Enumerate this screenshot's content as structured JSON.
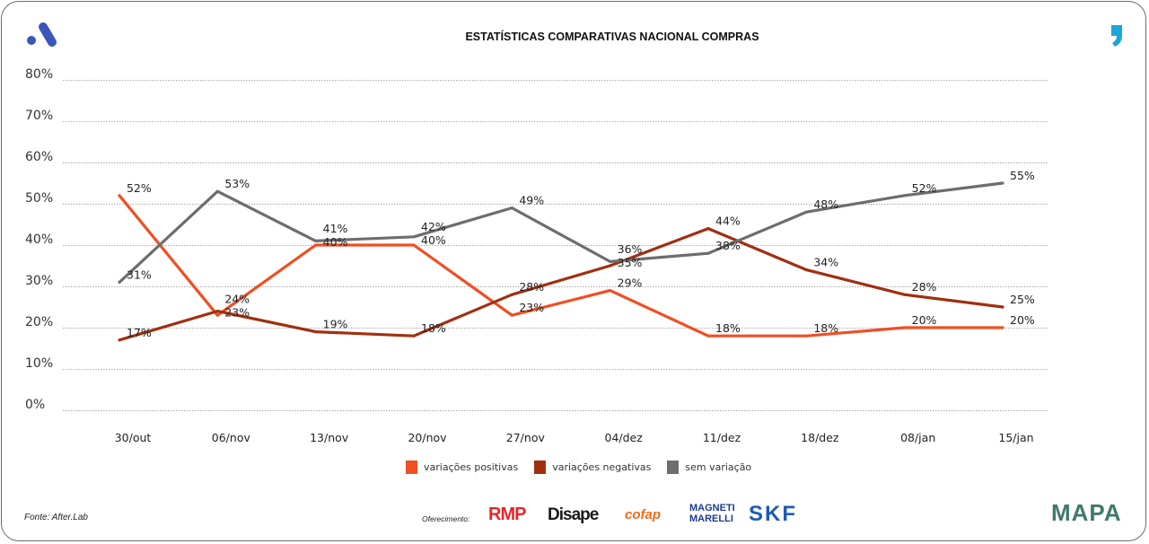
{
  "chart_data": {
    "type": "line",
    "title": "ESTATÍSTICAS COMPARATIVAS NACIONAL COMPRAS",
    "categories": [
      "30/out",
      "06/nov",
      "13/nov",
      "20/nov",
      "27/nov",
      "04/dez",
      "11/dez",
      "18/dez",
      "08/jan",
      "15/jan"
    ],
    "yticks": [
      "0%",
      "10%",
      "20%",
      "30%",
      "40%",
      "50%",
      "60%",
      "70%",
      "80%"
    ],
    "ylim": [
      0,
      80
    ],
    "grid": true,
    "legend_position": "bottom",
    "series": [
      {
        "name": "variações positivas",
        "color": "#f04e23",
        "values": [
          52,
          23,
          40,
          40,
          23,
          29,
          18,
          18,
          20,
          20
        ]
      },
      {
        "name": "variações negativas",
        "color": "#a0300f",
        "values": [
          17,
          24,
          19,
          18,
          28,
          35,
          44,
          34,
          28,
          25
        ]
      },
      {
        "name": "sem variação",
        "color": "#6d6d6d",
        "values": [
          31,
          53,
          41,
          42,
          49,
          36,
          38,
          48,
          52,
          55
        ]
      }
    ]
  },
  "footer": {
    "source": "Fonte: After.Lab",
    "offer": "Oferecimento:",
    "sponsors": [
      "RMP",
      "Disape",
      "cofap",
      "MAGNETI MARELLI",
      "SKF"
    ],
    "brand": "MAPA"
  },
  "colors": {
    "logo_blue": "#3a56b8",
    "accent_teal": "#1aa6d8"
  }
}
